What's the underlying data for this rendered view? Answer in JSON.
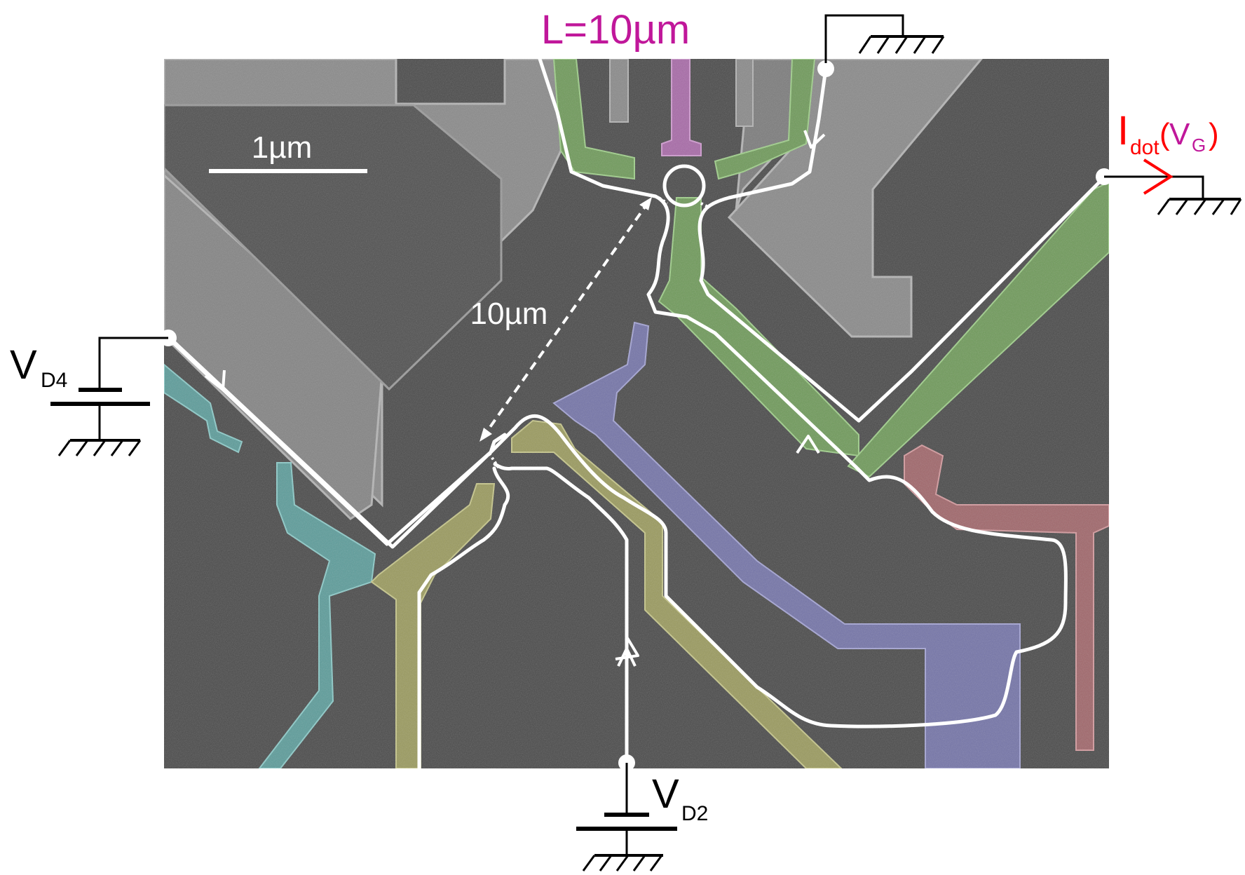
{
  "labels": {
    "scale_bar": "1µm",
    "path_length": "L=10µm",
    "distance": "10µm",
    "vd4_main": "V",
    "vd4_sub": "D4",
    "vd2_main": "V",
    "vd2_sub": "D2",
    "idot_main": "I",
    "idot_sub": "dot",
    "idot_open": "(",
    "idot_vg_main": "V",
    "idot_vg_sub": "G",
    "idot_close": ")"
  },
  "colors": {
    "background": "#ffffff",
    "micrograph": "#4a4a4a",
    "metal_gate": "#8a8a8a",
    "gate_green": "#6f9a5a",
    "gate_magenta": "#a86aa8",
    "gate_teal": "#5c9c9a",
    "gate_yellow": "#9a9a5e",
    "gate_blue": "#7474a8",
    "gate_red": "#a0666a",
    "edge_channel": "#ffffff",
    "circuit": "#000000",
    "current_label": "#ff0000",
    "length_label": "#c0179a"
  }
}
